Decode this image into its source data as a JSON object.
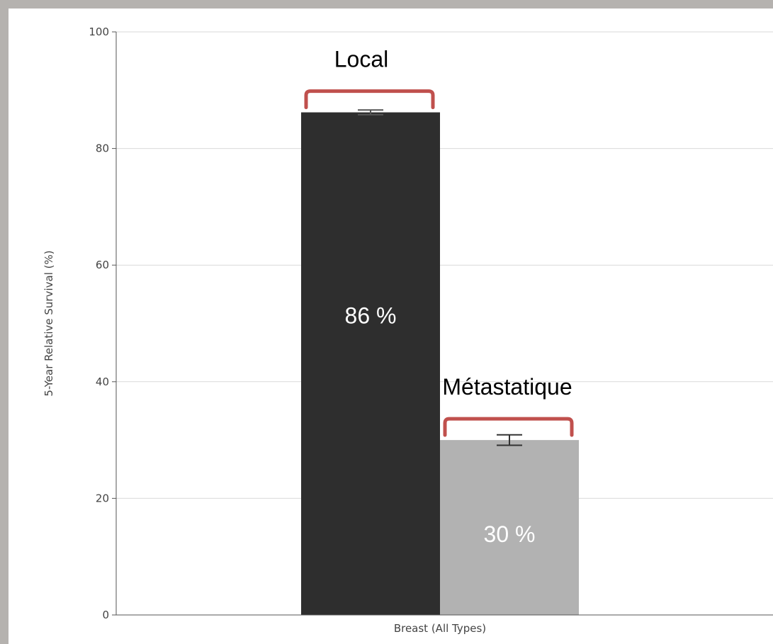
{
  "chart_data": {
    "type": "bar",
    "categories": [
      "Breast (All Types)"
    ],
    "series": [
      {
        "name": "Local",
        "values": [
          86.2
        ],
        "error": [
          0.4
        ],
        "color": "#2e2e2e",
        "value_label": "86 %"
      },
      {
        "name": "Métastatique",
        "values": [
          30.0
        ],
        "error": [
          0.9
        ],
        "color": "#b2b2b2",
        "value_label": "30 %"
      }
    ],
    "ylabel": "5-Year Relative Survival (%)",
    "xlabel": "",
    "ylim": [
      0,
      100
    ],
    "yticks": [
      0,
      20,
      40,
      60,
      80,
      100
    ],
    "grid": true,
    "bracket_color": "#c0504d",
    "gridline_color": "#d9d9d9",
    "axis_color": "#555555"
  }
}
